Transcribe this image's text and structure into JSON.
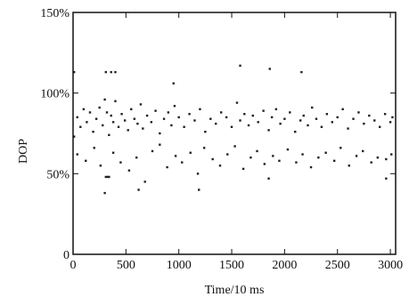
{
  "chart_data": {
    "type": "scatter",
    "title": "",
    "xlabel": "Time/10 ms",
    "ylabel": "DOP",
    "xlim": [
      0,
      3050
    ],
    "ylim": [
      0,
      150
    ],
    "x_ticks": [
      0,
      500,
      1000,
      1500,
      2000,
      2500,
      3000
    ],
    "x_tick_labels": [
      "0",
      "500",
      "1000",
      "1500",
      "2000",
      "2500",
      "3000"
    ],
    "y_ticks": [
      0,
      50,
      100,
      150
    ],
    "y_tick_labels": [
      "0",
      "50%",
      "100%",
      "150%"
    ],
    "grid": false,
    "legend": "none",
    "marker_color": "#222222",
    "series": [
      {
        "x": [
          10,
          40,
          70,
          100,
          130,
          160,
          190,
          220,
          250,
          280,
          300,
          320,
          340,
          360,
          380,
          400,
          430,
          460,
          490,
          520,
          550,
          580,
          610,
          640,
          660,
          700,
          740,
          780,
          820,
          860,
          900,
          930,
          960,
          1000,
          1050,
          1100,
          1150,
          1200,
          1250,
          1300,
          1350,
          1400,
          1450,
          1500,
          1550,
          1580,
          1620,
          1660,
          1700,
          1750,
          1800,
          1850,
          1880,
          1920,
          1960,
          2000,
          2050,
          2100,
          2150,
          2180,
          2220,
          2260,
          2300,
          2350,
          2400,
          2450,
          2500,
          2550,
          2600,
          2650,
          2700,
          2750,
          2800,
          2850,
          2900,
          2950,
          3000,
          3020,
          40,
          120,
          200,
          260,
          310,
          380,
          450,
          530,
          600,
          680,
          750,
          820,
          890,
          970,
          1030,
          1110,
          1180,
          1240,
          1320,
          1390,
          1460,
          1530,
          1610,
          1680,
          1740,
          1810,
          1890,
          1950,
          2030,
          2110,
          2170,
          2250,
          2320,
          2390,
          2470,
          2530,
          2610,
          2680,
          2740,
          2820,
          2880,
          2960,
          3010
        ],
        "y": [
          73,
          85,
          79,
          90,
          82,
          88,
          76,
          84,
          91,
          80,
          96,
          88,
          74,
          86,
          82,
          95,
          79,
          87,
          83,
          77,
          90,
          84,
          81,
          93,
          78,
          86,
          82,
          89,
          75,
          84,
          88,
          80,
          92,
          85,
          79,
          87,
          83,
          90,
          76,
          84,
          81,
          88,
          85,
          79,
          94,
          83,
          87,
          80,
          86,
          82,
          89,
          77,
          85,
          90,
          81,
          84,
          88,
          76,
          83,
          86,
          80,
          91,
          84,
          79,
          87,
          82,
          85,
          90,
          78,
          84,
          88,
          81,
          86,
          83,
          79,
          87,
          82,
          85,
          62,
          58,
          66,
          55,
          48,
          63,
          57,
          52,
          60,
          45,
          64,
          68,
          54,
          61,
          57,
          63,
          50,
          66,
          59,
          55,
          62,
          67,
          53,
          60,
          64,
          56,
          61,
          58,
          65,
          57,
          62,
          54,
          60,
          63,
          58,
          66,
          55,
          61,
          64,
          57,
          60,
          59,
          62
        ]
      },
      {
        "x": [
          10,
          310,
          360,
          400,
          950,
          1580,
          1860,
          2160,
          300,
          330,
          340,
          620,
          1190,
          1850,
          2960
        ],
        "y": [
          113,
          113,
          113,
          113,
          106,
          117,
          115,
          113,
          38,
          48,
          48,
          40,
          40,
          47,
          47
        ]
      }
    ]
  }
}
